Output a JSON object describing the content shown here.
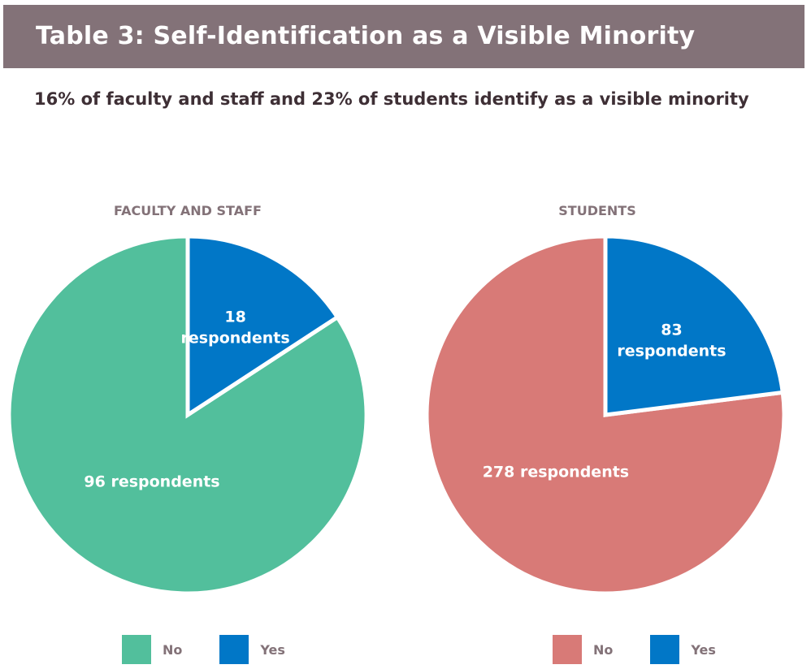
{
  "header": {
    "title": "Table 3:  Self-Identification as a Visible Minority",
    "subtitle": "16% of faculty and staff and 23% of students identify as a visible minority"
  },
  "colors": {
    "header_bg": "#837278",
    "green": "#52bf9c",
    "blue": "#0177c7",
    "red": "#d87a77",
    "label_gray": "#837278"
  },
  "chart_data": [
    {
      "type": "pie",
      "title": "FACULTY AND STAFF",
      "categories": [
        "No",
        "Yes"
      ],
      "values": [
        96,
        18
      ],
      "slice_labels": [
        "96 respondents",
        "18 respondents"
      ],
      "colors": [
        "#52bf9c",
        "#0177c7"
      ],
      "legend": [
        "No",
        "Yes"
      ],
      "legend_position": "bottom"
    },
    {
      "type": "pie",
      "title": "STUDENTS",
      "categories": [
        "No",
        "Yes"
      ],
      "values": [
        278,
        83
      ],
      "slice_labels": [
        "278 respondents",
        "83 respondents"
      ],
      "colors": [
        "#d87a77",
        "#0177c7"
      ],
      "legend": [
        "No",
        "Yes"
      ],
      "legend_position": "bottom"
    }
  ]
}
